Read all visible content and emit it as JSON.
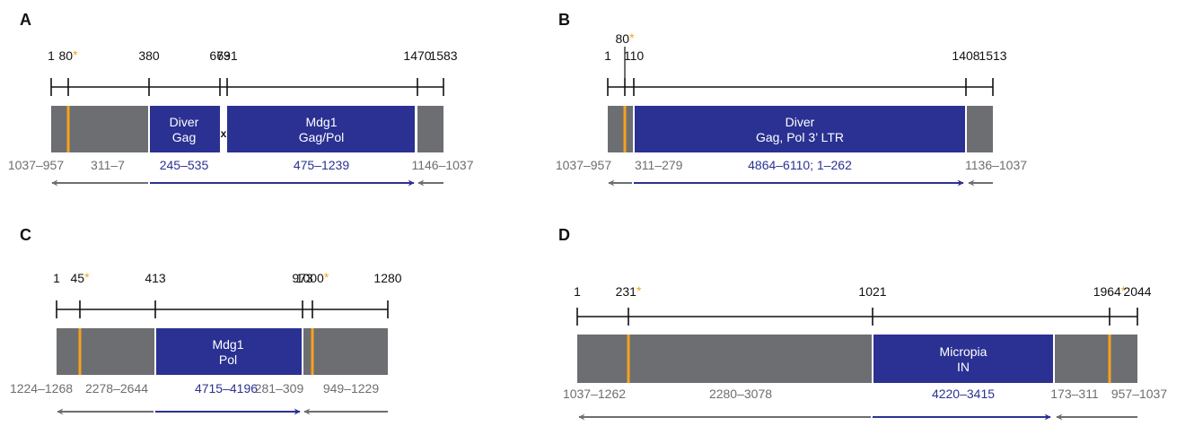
{
  "colors": {
    "gray_block": "#6d6e71",
    "blue_block": "#2a3192",
    "orange": "#f7a21b",
    "gray_text": "#6d6e71",
    "blue_text": "#2a3192",
    "black": "#111111"
  },
  "panels": [
    {
      "letter": "A",
      "ticks": [
        {
          "label": "1",
          "star": false
        },
        {
          "label": "80",
          "star": true
        },
        {
          "label": "380",
          "star": false
        },
        {
          "label": "673",
          "star": false
        },
        {
          "label": "691",
          "star": false
        },
        {
          "label": "1470",
          "star": false
        },
        {
          "label": "1583",
          "star": false
        }
      ],
      "block_labels": [
        {
          "line1": "Diver",
          "line2": "Gag"
        },
        {
          "line1": "Mdg1",
          "line2": "Gag/Pol"
        }
      ],
      "junction_mark": "x",
      "ranges": [
        {
          "text": "1037–957",
          "color": "gray"
        },
        {
          "text": "311–7",
          "color": "gray"
        },
        {
          "text": "245–535",
          "color": "blue"
        },
        {
          "text": "475–1239",
          "color": "blue"
        },
        {
          "text": "1146–1037",
          "color": "gray"
        }
      ]
    },
    {
      "letter": "B",
      "ticks": [
        {
          "label": "1",
          "star": false
        },
        {
          "label": "80",
          "star": true
        },
        {
          "label": "110",
          "star": false
        },
        {
          "label": "1408",
          "star": false
        },
        {
          "label": "1513",
          "star": false
        }
      ],
      "block_labels": [
        {
          "line1": "Diver",
          "line2": "Gag, Pol 3’ LTR"
        }
      ],
      "ranges": [
        {
          "text": "1037–957",
          "color": "gray"
        },
        {
          "text": "311–279",
          "color": "gray"
        },
        {
          "text": "4864–6110; 1–262",
          "color": "blue"
        },
        {
          "text": "1136–1037",
          "color": "gray"
        }
      ]
    },
    {
      "letter": "C",
      "ticks": [
        {
          "label": "1",
          "star": false
        },
        {
          "label": "45",
          "star": true
        },
        {
          "label": "413",
          "star": false
        },
        {
          "label": "973",
          "star": false
        },
        {
          "label": "1000",
          "star": true
        },
        {
          "label": "1280",
          "star": false
        }
      ],
      "block_labels": [
        {
          "line1": "Mdg1",
          "line2": "Pol"
        }
      ],
      "ranges": [
        {
          "text": "1224–1268",
          "color": "gray"
        },
        {
          "text": "2278–2644",
          "color": "gray"
        },
        {
          "text": "4715–4196",
          "color": "blue"
        },
        {
          "text": "281–309",
          "color": "gray"
        },
        {
          "text": "949–1229",
          "color": "gray"
        }
      ]
    },
    {
      "letter": "D",
      "ticks": [
        {
          "label": "1",
          "star": false
        },
        {
          "label": "231",
          "star": true
        },
        {
          "label": "1021",
          "star": false
        },
        {
          "label": "1964",
          "star": true
        },
        {
          "label": "2044",
          "star": false
        }
      ],
      "block_labels": [
        {
          "line1": "Micropia",
          "line2": "IN"
        }
      ],
      "ranges": [
        {
          "text": "1037–1262",
          "color": "gray"
        },
        {
          "text": "2280–3078",
          "color": "gray"
        },
        {
          "text": "4220–3415",
          "color": "blue"
        },
        {
          "text": "173–311",
          "color": "gray"
        },
        {
          "text": "957–1037",
          "color": "gray"
        }
      ]
    }
  ]
}
